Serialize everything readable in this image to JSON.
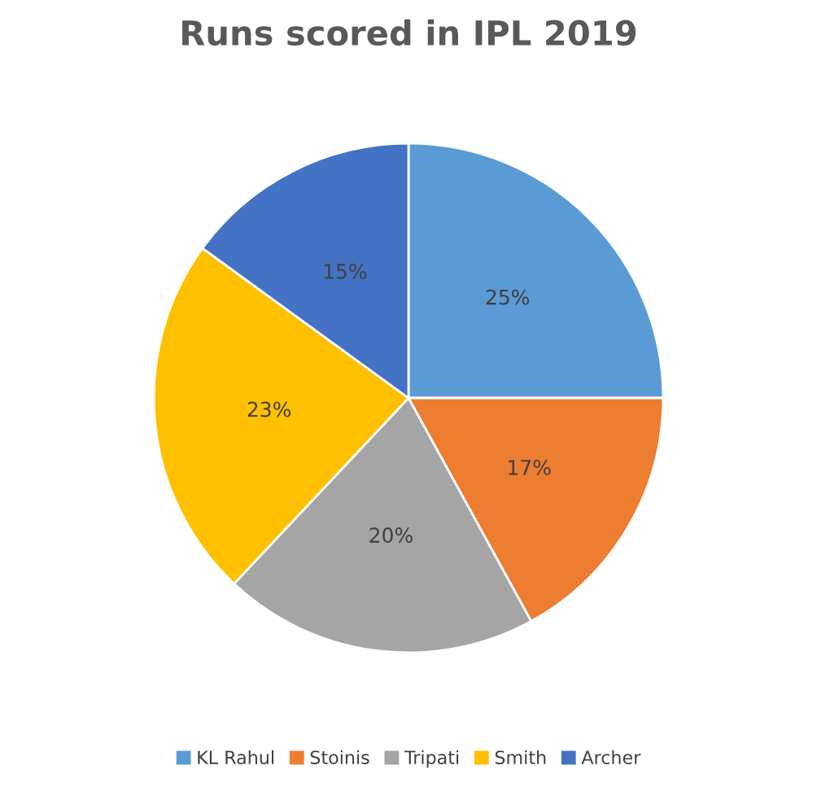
{
  "chart_data": {
    "type": "pie",
    "title": "Runs scored in IPL 2019",
    "categories": [
      "KL Rahul",
      "Stoinis",
      "Tripati",
      "Smith",
      "Archer"
    ],
    "values": [
      25,
      17,
      20,
      23,
      15
    ],
    "value_labels": [
      "25%",
      "17%",
      "20%",
      "23%",
      "15%"
    ],
    "colors": [
      "#5b9bd5",
      "#ed7d31",
      "#a5a5a5",
      "#ffc000",
      "#4472c4"
    ],
    "legend": "bottom"
  }
}
